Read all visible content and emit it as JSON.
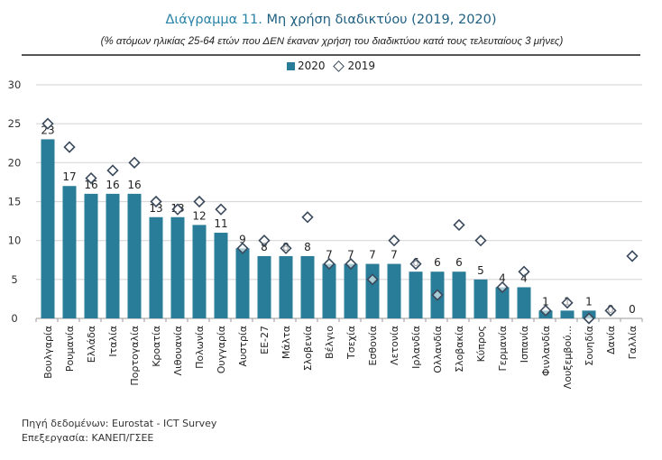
{
  "header": {
    "title_prefix": "Διάγραμμα 11.",
    "title_rest": " Μη χρήση διαδικτύου (2019, 2020)",
    "subtitle": "(% ατόμων ηλικίας 25-64 ετών που ΔΕΝ έκαναν χρήση του διαδικτύου κατά τους τελευταίους 3 μήνες)"
  },
  "legend": {
    "series_2020": "2020",
    "series_2019": "2019"
  },
  "footer": {
    "source": "Πηγή δεδομένων: Eurostat - ICT Survey",
    "processing": "Επεξεργασία: ΚΑΝΕΠ/ΓΣΕΕ"
  },
  "colors": {
    "bar": "#2a7d99",
    "marker": "#3a4a5c",
    "grid": "#d9d9d9"
  },
  "chart_data": {
    "type": "bar",
    "title": "Διάγραμμα 11. Μη χρήση διαδικτύου (2019, 2020)",
    "subtitle": "(% ατόμων ηλικίας 25-64 ετών που ΔΕΝ έκαναν χρήση του διαδικτύου κατά τους τελευταίους 3 μήνες)",
    "xlabel": "",
    "ylabel": "",
    "ylim": [
      0,
      30
    ],
    "yticks": [
      0,
      5,
      10,
      15,
      20,
      25,
      30
    ],
    "grid": true,
    "legend_position": "top-center",
    "categories": [
      "Βουλγαρία",
      "Ρουμανία",
      "Ελλάδα",
      "Ιταλία",
      "Πορτογαλία",
      "Κροατία",
      "Λιθουανία",
      "Πολωνία",
      "Ουγγαρία",
      "Αυστρία",
      "ΕΕ-27",
      "Μάλτα",
      "Σλοβενία",
      "Βέλγιο",
      "Τσεχία",
      "Εσθονία",
      "Λετονία",
      "Ιρλανδία",
      "Ολλανδία",
      "Σλοβακία",
      "Κύπρος",
      "Γερμανία",
      "Ισπανία",
      "Φινλανδία",
      "Λουξεμβού...",
      "Σουηδία",
      "Δανία",
      "Γαλλία"
    ],
    "series": [
      {
        "name": "2020",
        "kind": "bar",
        "values": [
          23,
          17,
          16,
          16,
          16,
          13,
          13,
          12,
          11,
          9,
          8,
          8,
          8,
          7,
          7,
          7,
          7,
          6,
          6,
          6,
          5,
          4,
          4,
          1,
          1,
          1,
          0,
          0
        ]
      },
      {
        "name": "2019",
        "kind": "marker-diamond",
        "values": [
          25,
          22,
          18,
          19,
          20,
          15,
          14,
          15,
          14,
          9,
          10,
          9,
          13,
          7,
          7,
          5,
          10,
          7,
          3,
          12,
          10,
          4,
          6,
          1,
          2,
          0,
          1,
          8
        ]
      }
    ]
  }
}
